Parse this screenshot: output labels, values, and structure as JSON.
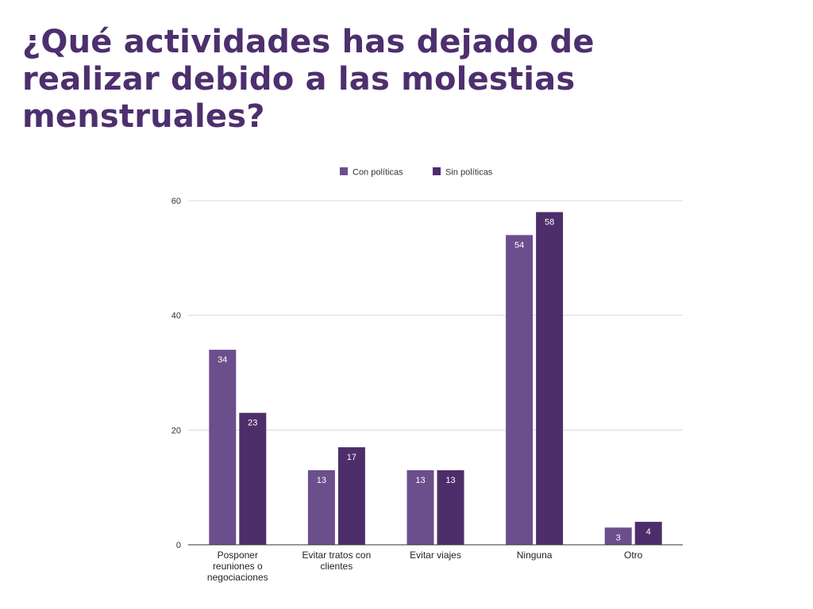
{
  "slide": {
    "title_lines": [
      "¿Qué actividades has dejado de",
      "realizar debido a las molestias",
      "menstruales?"
    ]
  },
  "colors": {
    "title": "#4d2f6e",
    "con_politicas": "#6b4f8c",
    "sin_politicas": "#4e2e6a",
    "grid": "#d9d9d9",
    "axis": "#333333"
  },
  "chart_data": {
    "type": "bar",
    "title": "",
    "xlabel": "",
    "ylabel": "",
    "ylim": [
      0,
      60
    ],
    "yticks": [
      0,
      20,
      40,
      60
    ],
    "grid": true,
    "legend_position": "top-center",
    "categories": [
      [
        "Posponer",
        "reuniones o",
        "negociaciones"
      ],
      [
        "Evitar tratos con",
        "clientes"
      ],
      [
        "Evitar viajes"
      ],
      [
        "Ninguna"
      ],
      [
        "Otro"
      ]
    ],
    "series": [
      {
        "name": "Con políticas",
        "color": "#6b4f8c",
        "values": [
          34,
          13,
          13,
          54,
          3
        ]
      },
      {
        "name": "Sin políticas",
        "color": "#4e2e6a",
        "values": [
          23,
          17,
          13,
          58,
          4
        ]
      }
    ]
  }
}
